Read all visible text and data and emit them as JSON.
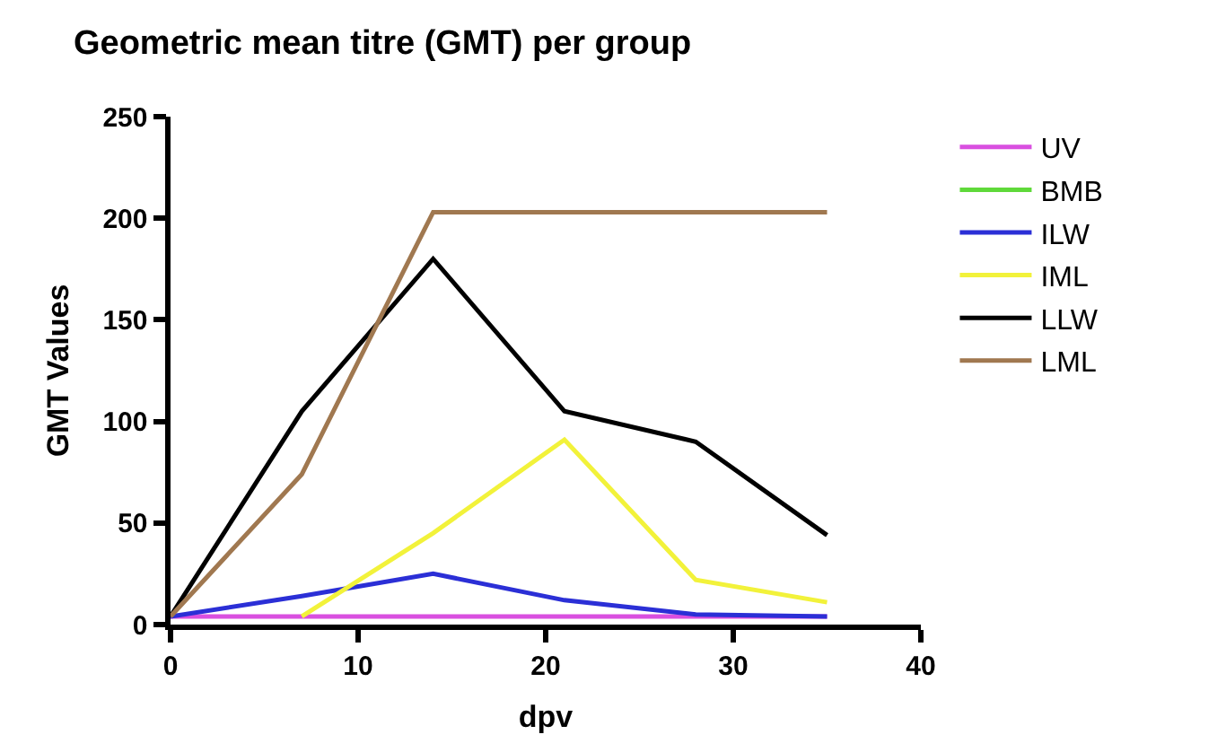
{
  "chart_data": {
    "type": "line",
    "title": "Geometric mean titre (GMT) per group",
    "xlabel": "dpv",
    "ylabel": "GMT Values",
    "x": [
      0,
      7,
      14,
      21,
      28,
      35
    ],
    "series": [
      {
        "name": "UV",
        "color": "#d94fe0",
        "values": [
          4,
          4,
          4,
          4,
          4,
          4
        ]
      },
      {
        "name": "BMB",
        "color": "#5fd93a",
        "values": [
          null,
          null,
          null,
          null,
          null,
          null
        ]
      },
      {
        "name": "ILW",
        "color": "#2b2fd6",
        "values": [
          4,
          14,
          25,
          12,
          5,
          4
        ]
      },
      {
        "name": "IML",
        "color": "#f2f23a",
        "values": [
          null,
          4,
          45,
          91,
          22,
          11
        ]
      },
      {
        "name": "LLW",
        "color": "#000000",
        "values": [
          4,
          105,
          180,
          105,
          90,
          44
        ]
      },
      {
        "name": "LML",
        "color": "#a07850",
        "values": [
          4,
          74,
          203,
          203,
          203,
          203
        ]
      }
    ],
    "xlim": [
      0,
      40
    ],
    "xticks": [
      0,
      10,
      20,
      30,
      40
    ],
    "ylim": [
      0,
      250
    ],
    "yticks": [
      0,
      50,
      100,
      150,
      200,
      250
    ],
    "legend": "right",
    "marker": "none",
    "line_style": "solid"
  }
}
